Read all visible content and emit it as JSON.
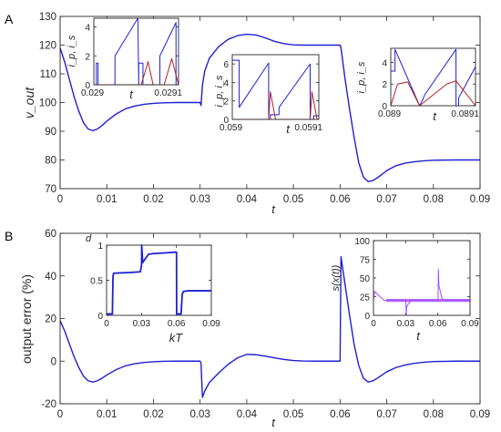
{
  "colors": {
    "main_line": "#1f1fd4",
    "inset_blue": "#1f1fd4",
    "inset_red": "#b22222",
    "sliding": "#a64dff",
    "axis": "#262626"
  },
  "chart_data": [
    {
      "id": "A-main",
      "type": "line",
      "panel_label": "A",
      "xlabel": "t",
      "ylabel": "v_out",
      "xlim": [
        0,
        0.09
      ],
      "ylim": [
        70,
        130
      ],
      "xticks": [
        0,
        0.01,
        0.02,
        0.03,
        0.04,
        0.05,
        0.06,
        0.07,
        0.08,
        0.09
      ],
      "xtick_labels": [
        "0",
        "0.01",
        "0.02",
        "0.03",
        "0.04",
        "0.05",
        "0.06",
        "0.07",
        "0.08",
        "0.09"
      ],
      "yticks": [
        70,
        80,
        90,
        100,
        110,
        120,
        130
      ],
      "ytick_labels": [
        "70",
        "80",
        "90",
        "100",
        "110",
        "120",
        "130"
      ],
      "series": [
        {
          "x": [
            0,
            0.001,
            0.002,
            0.003,
            0.004,
            0.005,
            0.006,
            0.007,
            0.008,
            0.009,
            0.01,
            0.012,
            0.014,
            0.016,
            0.018,
            0.02,
            0.022,
            0.025,
            0.028,
            0.03,
            0.0302,
            0.0305,
            0.031,
            0.032,
            0.034,
            0.036,
            0.038,
            0.04,
            0.042,
            0.044,
            0.046,
            0.048,
            0.05,
            0.052,
            0.055,
            0.058,
            0.06,
            0.0602,
            0.061,
            0.062,
            0.063,
            0.064,
            0.065,
            0.066,
            0.067,
            0.068,
            0.069,
            0.07,
            0.072,
            0.074,
            0.076,
            0.078,
            0.08,
            0.085,
            0.09
          ],
          "y": [
            119,
            114,
            108,
            102,
            97,
            93,
            90.8,
            90.2,
            90.8,
            92,
            93.5,
            96,
            97.8,
            98.8,
            99.4,
            99.7,
            99.9,
            100,
            100,
            100,
            99,
            106,
            111,
            115.5,
            119.5,
            122,
            123.3,
            123.8,
            123.5,
            122.5,
            121.3,
            120.5,
            120.1,
            120,
            120,
            120,
            120,
            119,
            109,
            98,
            88,
            79,
            74,
            72.5,
            72.8,
            73.8,
            75,
            76.3,
            78,
            78.9,
            79.4,
            79.7,
            79.9,
            80,
            80
          ]
        }
      ]
    },
    {
      "id": "A-inset-1",
      "type": "line",
      "xlabel": "t",
      "ylabel": "i_p, i_s",
      "xlim": [
        0.029,
        0.0291
      ],
      "ylim": [
        0,
        4.6
      ],
      "xtick_labels": [
        "0.029",
        "0.0291"
      ],
      "yticks": [
        0,
        2,
        4
      ],
      "ytick_labels": [
        "0",
        "2",
        "4"
      ],
      "series": [
        {
          "name": "i_p",
          "color": "blue",
          "x": [
            0.029,
            0.029003,
            0.029003,
            0.029005,
            0.029005,
            0.029025,
            0.029025,
            0.029052,
            0.029052,
            0.029053,
            0.029053,
            0.029058,
            0.029058,
            0.029078,
            0.029078,
            0.029097,
            0.029097,
            0.0291
          ],
          "y": [
            0,
            0,
            1.5,
            1.5,
            0,
            0,
            2.0,
            4.6,
            4.6,
            0,
            1.5,
            1.5,
            0,
            0,
            2.0,
            4.3,
            0,
            0
          ]
        },
        {
          "name": "i_s",
          "color": "red",
          "x": [
            0.029,
            0.029056,
            0.029064,
            0.02907,
            0.02907,
            0.029083,
            0.029092,
            0.0291
          ],
          "y": [
            0,
            0,
            1.6,
            0,
            0,
            0,
            1.8,
            0
          ]
        }
      ]
    },
    {
      "id": "A-inset-2",
      "type": "line",
      "xlabel": "t",
      "ylabel": "i_p, i_s",
      "xlim": [
        0.059,
        0.0591
      ],
      "ylim": [
        0,
        7
      ],
      "xtick_labels": [
        "0.059",
        "0.0591"
      ],
      "yticks": [
        0,
        2,
        4,
        6
      ],
      "ytick_labels": [
        "0",
        "2",
        "4",
        "6"
      ],
      "series": [
        {
          "name": "i_p",
          "color": "blue",
          "x": [
            0.059,
            0.059008,
            0.059008,
            0.059042,
            0.059042,
            0.059044,
            0.059044,
            0.059054,
            0.059054,
            0.05909,
            0.05909,
            0.059094,
            0.059094,
            0.0591
          ],
          "y": [
            6.4,
            6.4,
            1.3,
            6.1,
            0,
            0,
            0.5,
            0.5,
            1.3,
            6.0,
            0,
            0,
            0.4,
            0.4
          ]
        },
        {
          "name": "i_s",
          "color": "red",
          "x": [
            0.059,
            0.059042,
            0.059044,
            0.05905,
            0.05905,
            0.05909,
            0.059092,
            0.059098,
            0.0591
          ],
          "y": [
            0,
            0,
            3.0,
            0,
            0,
            0,
            3.0,
            0,
            0
          ]
        }
      ]
    },
    {
      "id": "A-inset-3",
      "type": "line",
      "xlabel": "t",
      "ylabel": "i_p, i_s",
      "xlim": [
        0.089,
        0.0891
      ],
      "ylim": [
        0,
        5.3
      ],
      "xtick_labels": [
        "0.089",
        "0.0891"
      ],
      "yticks": [
        0,
        2,
        4
      ],
      "ytick_labels": [
        "0",
        "2",
        "4"
      ],
      "series": [
        {
          "name": "i_p",
          "color": "blue",
          "x": [
            0.089,
            0.089005,
            0.089005,
            0.089034,
            0.089034,
            0.089038,
            0.089038,
            0.08904,
            0.08904,
            0.089077,
            0.089077,
            0.08908,
            0.08908,
            0.0891
          ],
          "y": [
            3.2,
            3.2,
            5.2,
            0,
            0,
            0.6,
            0.6,
            1.0,
            1.0,
            5.2,
            0,
            0,
            0.7,
            3.6
          ]
        },
        {
          "name": "i_s",
          "color": "red",
          "x": [
            0.089,
            0.089008,
            0.08902,
            0.089034,
            0.089034,
            0.089066,
            0.089077,
            0.0891
          ],
          "y": [
            0,
            2.0,
            2.2,
            0,
            0,
            2.0,
            2.3,
            0
          ]
        }
      ]
    },
    {
      "id": "B-main",
      "type": "line",
      "panel_label": "B",
      "xlabel": "t",
      "ylabel": "output error (%)",
      "xlim": [
        0,
        0.09
      ],
      "ylim": [
        -20,
        60
      ],
      "xticks": [
        0,
        0.01,
        0.02,
        0.03,
        0.04,
        0.05,
        0.06,
        0.07,
        0.08,
        0.09
      ],
      "xtick_labels": [
        "0",
        "0.01",
        "0.02",
        "0.03",
        "0.04",
        "0.05",
        "0.06",
        "0.07",
        "0.08",
        "0.09"
      ],
      "yticks": [
        -20,
        0,
        20,
        40,
        60
      ],
      "ytick_labels": [
        "-20",
        "0",
        "20",
        "40",
        "60"
      ],
      "series": [
        {
          "x": [
            0,
            0.001,
            0.002,
            0.003,
            0.004,
            0.005,
            0.006,
            0.007,
            0.008,
            0.009,
            0.01,
            0.012,
            0.014,
            0.016,
            0.018,
            0.02,
            0.022,
            0.025,
            0.028,
            0.03,
            0.0302,
            0.0305,
            0.031,
            0.032,
            0.034,
            0.036,
            0.038,
            0.04,
            0.042,
            0.044,
            0.046,
            0.048,
            0.05,
            0.052,
            0.055,
            0.058,
            0.06,
            0.0602,
            0.061,
            0.062,
            0.063,
            0.064,
            0.065,
            0.066,
            0.067,
            0.068,
            0.069,
            0.07,
            0.072,
            0.074,
            0.076,
            0.078,
            0.08,
            0.085,
            0.09
          ],
          "y": [
            19,
            14,
            8,
            2,
            -3,
            -7,
            -9.2,
            -9.8,
            -9.2,
            -8,
            -6.5,
            -4,
            -2.2,
            -1.2,
            -0.6,
            -0.3,
            -0.1,
            0,
            0,
            0,
            -1,
            -17,
            -14,
            -10,
            -5.5,
            -1.5,
            1.5,
            3.2,
            3,
            2.3,
            1.5,
            0.8,
            0.3,
            0.1,
            0,
            0,
            0,
            49,
            37,
            22,
            8,
            -2,
            -8,
            -9.8,
            -9.3,
            -8,
            -6.5,
            -5,
            -3,
            -1.8,
            -1,
            -0.5,
            -0.2,
            0,
            0
          ]
        }
      ]
    },
    {
      "id": "B-inset-1",
      "type": "line",
      "xlabel": "kT",
      "ylabel": "d",
      "xlim": [
        0,
        0.09
      ],
      "ylim": [
        0,
        1
      ],
      "xticks": [
        0,
        0.03,
        0.06,
        0.09
      ],
      "xtick_labels": [
        "0",
        "0.03",
        "0.06",
        "0.09"
      ],
      "yticks": [
        0,
        0.5,
        1
      ],
      "ytick_labels": [
        "0",
        "0.5",
        "1"
      ],
      "series": [
        {
          "x": [
            0,
            0.005,
            0.0055,
            0.006,
            0.02,
            0.029,
            0.0301,
            0.0302,
            0.031,
            0.033,
            0.036,
            0.04,
            0.05,
            0.059,
            0.0601,
            0.0602,
            0.0615,
            0.064,
            0.065,
            0.066,
            0.07,
            0.09
          ],
          "y": [
            0.02,
            0.02,
            0.55,
            0.6,
            0.61,
            0.62,
            0.72,
            1.0,
            0.75,
            0.8,
            0.87,
            0.88,
            0.89,
            0.9,
            0.9,
            0.02,
            0.02,
            0.02,
            0.3,
            0.34,
            0.35,
            0.35
          ]
        }
      ]
    },
    {
      "id": "B-inset-2",
      "type": "line",
      "xlabel": "t",
      "ylabel": "s(x(t))",
      "xlim": [
        0,
        0.09
      ],
      "ylim": [
        0,
        100
      ],
      "xticks": [
        0,
        0.03,
        0.06,
        0.09
      ],
      "xtick_labels": [
        "0",
        "0.03",
        "0.06",
        "0.09"
      ],
      "yticks": [
        0,
        25,
        50,
        75,
        100
      ],
      "ytick_labels": [
        "0",
        "25",
        "50",
        "75",
        "100"
      ],
      "series": [
        {
          "x": [
            0,
            0.001,
            0.006,
            0.01,
            0.029,
            0.0302,
            0.0305,
            0.031,
            0.035,
            0.04,
            0.059,
            0.0602,
            0.0605,
            0.061,
            0.064,
            0.068,
            0.09
          ],
          "y": [
            20,
            32,
            25,
            20,
            20,
            20,
            0,
            12,
            20,
            20,
            20,
            20,
            62,
            40,
            22,
            20,
            20
          ]
        }
      ]
    }
  ]
}
